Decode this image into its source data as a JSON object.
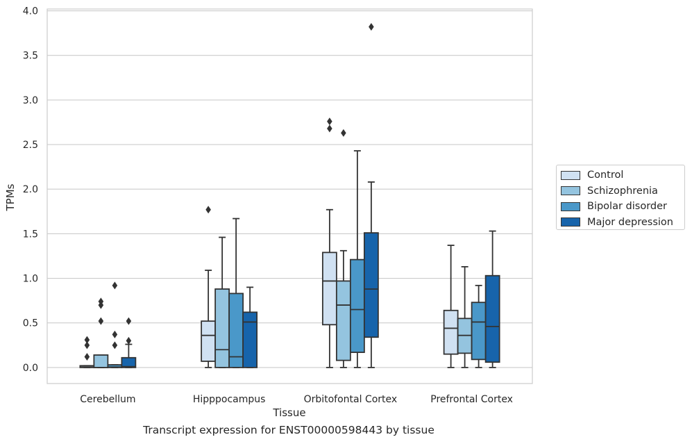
{
  "caption": "Transcript expression for ENST00000598443 by tissue",
  "chart_data": {
    "type": "box",
    "xlabel": "Tissue",
    "ylabel": "TPMs",
    "ylim": [
      -0.18,
      4.02
    ],
    "yticks": [
      "0.0",
      "0.5",
      "1.0",
      "1.5",
      "2.0",
      "2.5",
      "3.0",
      "3.5",
      "4.0"
    ],
    "grid": true,
    "legend_position": "right",
    "categories": [
      "Cerebellum",
      "Hipppocampus",
      "Orbitofontal Cortex",
      "Prefrontal Cortex"
    ],
    "series": [
      {
        "name": "Control",
        "color": "#d0e1f2",
        "boxes": [
          {
            "whislo": 0,
            "q1": 0,
            "med": 0.005,
            "q3": 0.02,
            "whishi": 0.02,
            "fliers": [
              0.12,
              0.25,
              0.31
            ]
          },
          {
            "whislo": 0.0,
            "q1": 0.07,
            "med": 0.36,
            "q3": 0.52,
            "whishi": 1.09,
            "fliers": [
              1.77
            ]
          },
          {
            "whislo": 0.0,
            "q1": 0.48,
            "med": 0.97,
            "q3": 1.29,
            "whishi": 1.77,
            "fliers": [
              2.68,
              2.76
            ]
          },
          {
            "whislo": 0.0,
            "q1": 0.15,
            "med": 0.44,
            "q3": 0.64,
            "whishi": 1.37,
            "fliers": []
          }
        ]
      },
      {
        "name": "Schizophrenia",
        "color": "#94c4df",
        "boxes": [
          {
            "whislo": 0,
            "q1": 0,
            "med": 0.0,
            "q3": 0.14,
            "whishi": 0.14,
            "fliers": [
              0.52,
              0.7,
              0.74
            ]
          },
          {
            "whislo": 0.0,
            "q1": 0.0,
            "med": 0.2,
            "q3": 0.88,
            "whishi": 1.46,
            "fliers": []
          },
          {
            "whislo": 0.0,
            "q1": 0.08,
            "med": 0.7,
            "q3": 0.97,
            "whishi": 1.31,
            "fliers": [
              2.63
            ]
          },
          {
            "whislo": 0.0,
            "q1": 0.16,
            "med": 0.36,
            "q3": 0.55,
            "whishi": 1.13,
            "fliers": []
          }
        ]
      },
      {
        "name": "Bipolar disorder",
        "color": "#4a98c9",
        "boxes": [
          {
            "whislo": 0,
            "q1": 0,
            "med": 0.005,
            "q3": 0.03,
            "whishi": 0.03,
            "fliers": [
              0.25,
              0.37,
              0.92
            ]
          },
          {
            "whislo": 0.0,
            "q1": 0.0,
            "med": 0.12,
            "q3": 0.83,
            "whishi": 1.67,
            "fliers": []
          },
          {
            "whislo": 0.0,
            "q1": 0.17,
            "med": 0.65,
            "q3": 1.21,
            "whishi": 2.43,
            "fliers": []
          },
          {
            "whislo": 0.0,
            "q1": 0.09,
            "med": 0.51,
            "q3": 0.73,
            "whishi": 0.92,
            "fliers": []
          }
        ]
      },
      {
        "name": "Major depression",
        "color": "#1764ab",
        "boxes": [
          {
            "whislo": 0,
            "q1": 0,
            "med": 0.01,
            "q3": 0.11,
            "whishi": 0.26,
            "fliers": [
              0.3,
              0.52
            ]
          },
          {
            "whislo": 0.0,
            "q1": 0.0,
            "med": 0.51,
            "q3": 0.62,
            "whishi": 0.9,
            "fliers": []
          },
          {
            "whislo": 0.0,
            "q1": 0.34,
            "med": 0.88,
            "q3": 1.51,
            "whishi": 2.08,
            "fliers": [
              3.82
            ]
          },
          {
            "whislo": 0.0,
            "q1": 0.06,
            "med": 0.46,
            "q3": 1.03,
            "whishi": 1.53,
            "fliers": []
          }
        ]
      }
    ]
  }
}
